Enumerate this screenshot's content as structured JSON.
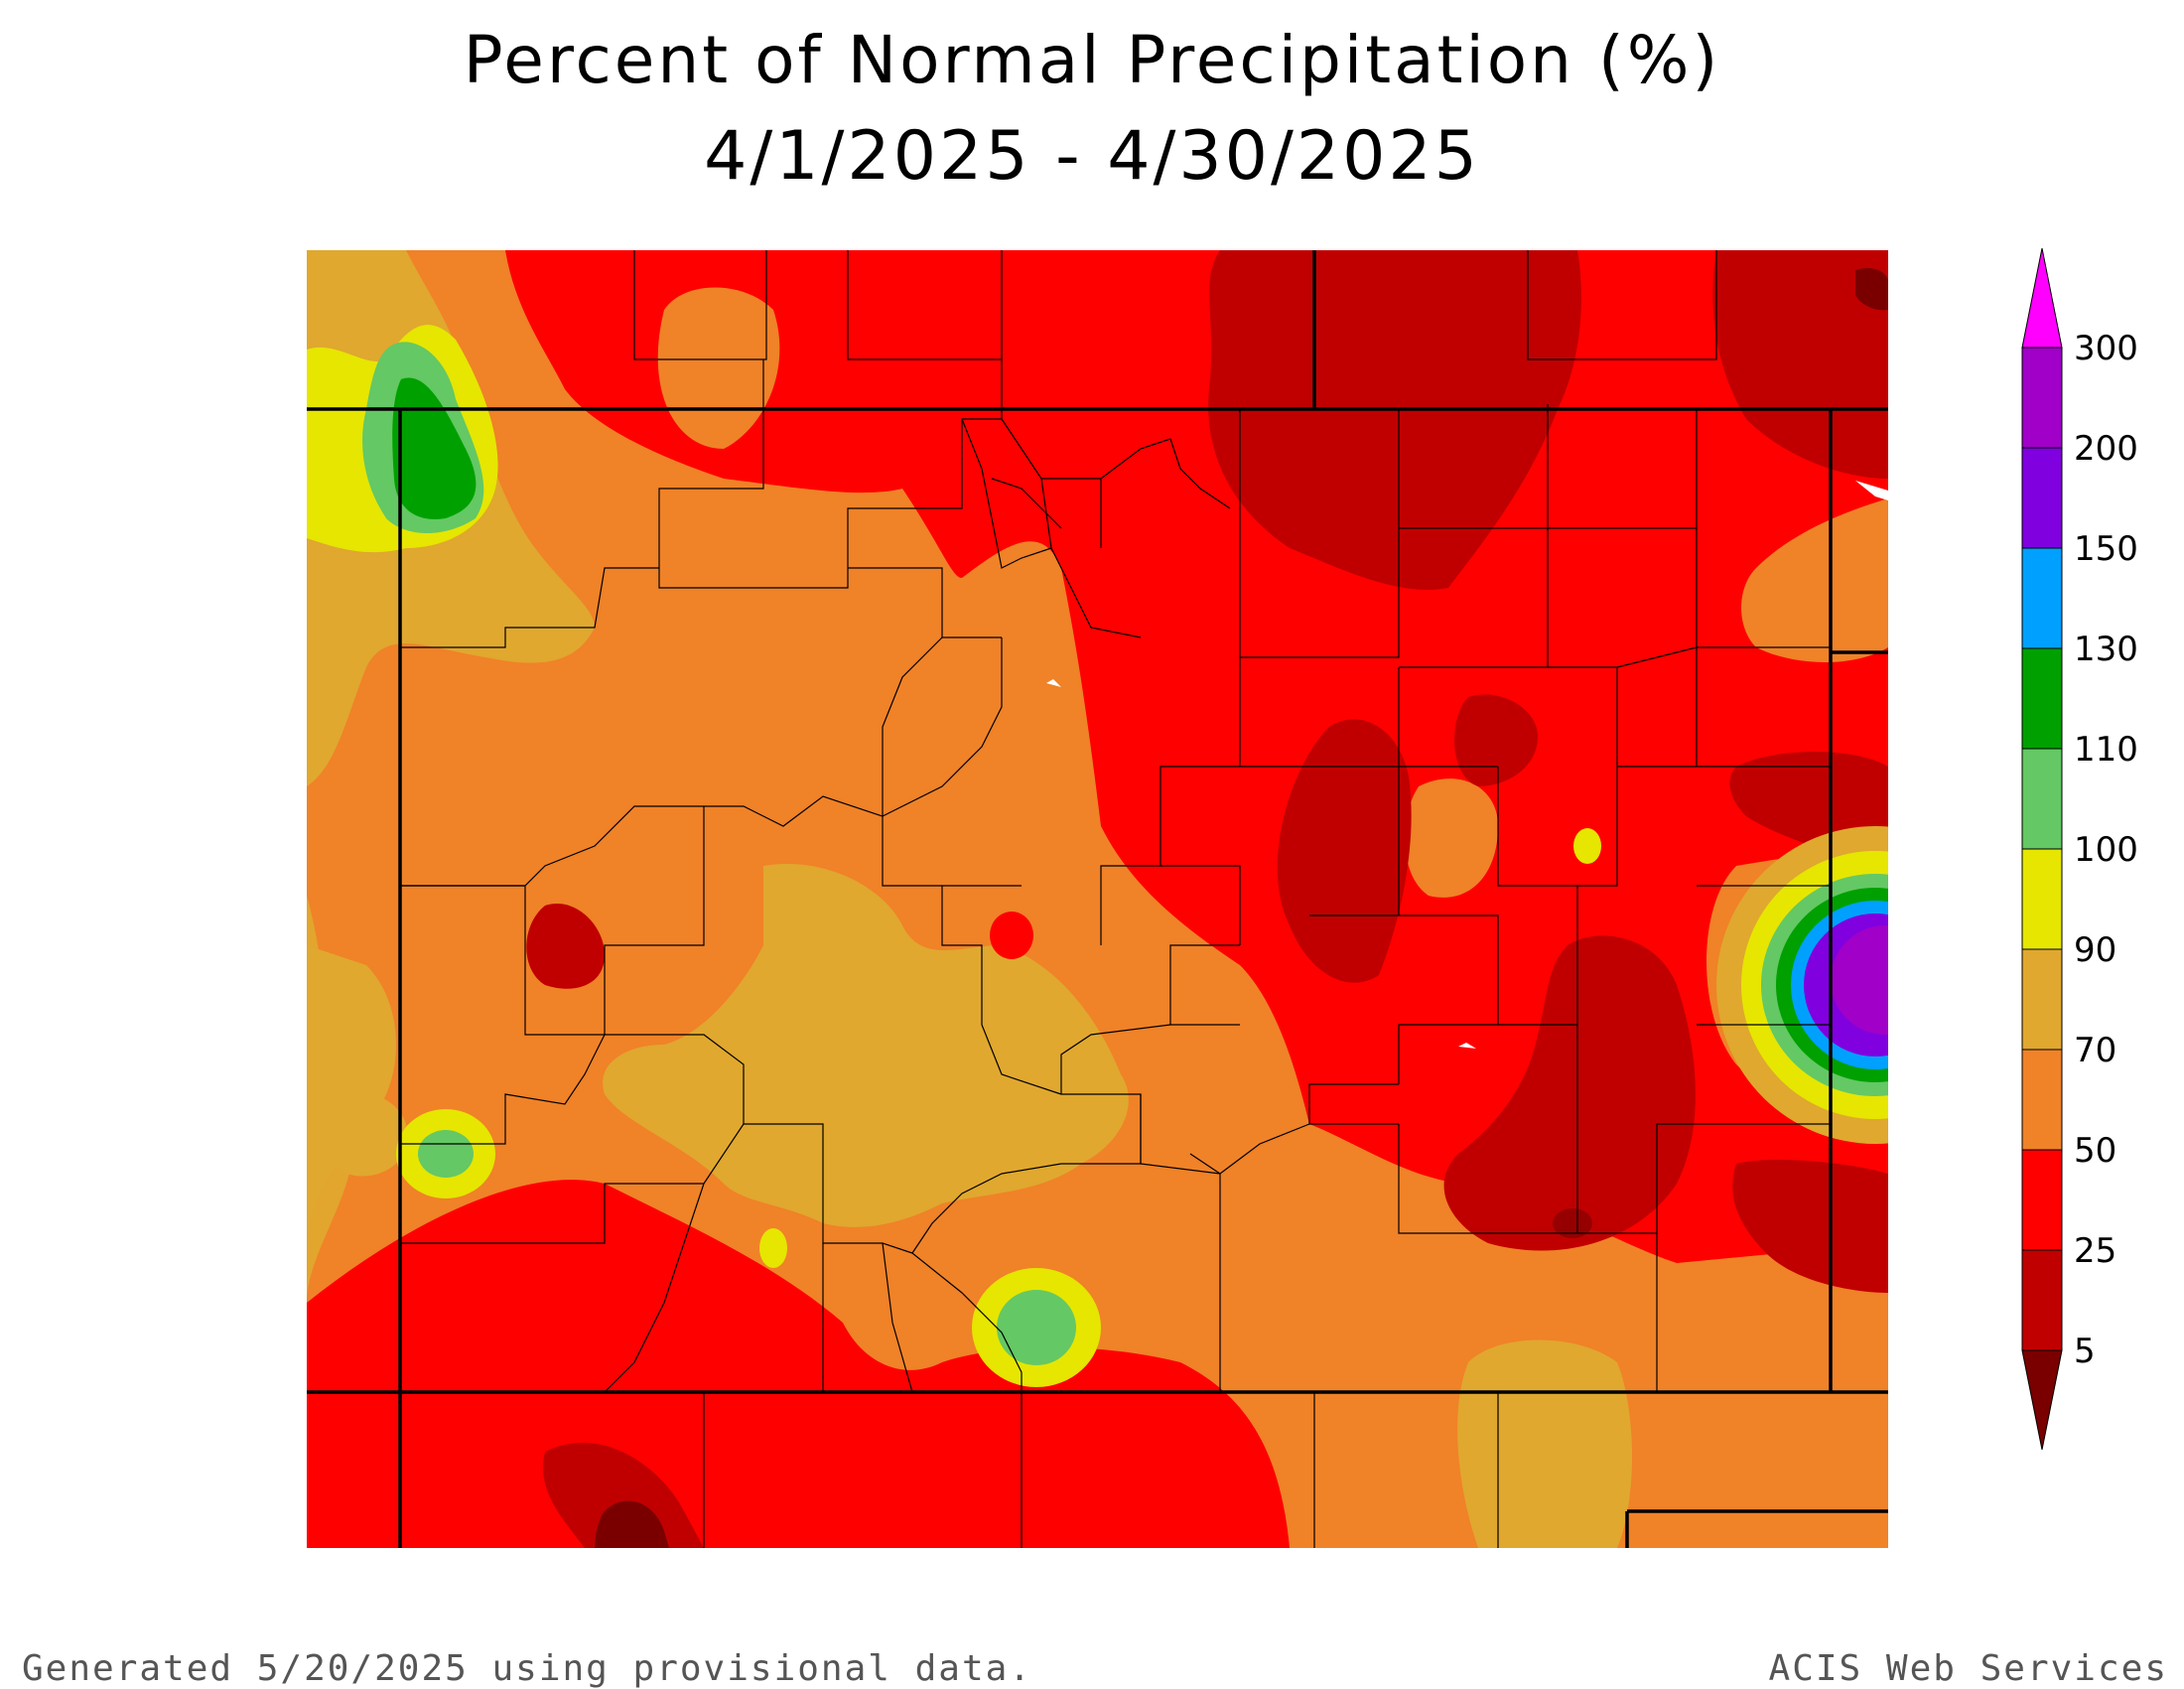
{
  "title": {
    "line1": "Percent of Normal Precipitation (%)",
    "line2": "4/1/2025 - 4/30/2025"
  },
  "legend": {
    "bins": [
      {
        "label": "5",
        "color": "#7a0000"
      },
      {
        "label": "25",
        "color": "#c00000"
      },
      {
        "label": "50",
        "color": "#ff0000"
      },
      {
        "label": "70",
        "color": "#f08228"
      },
      {
        "label": "90",
        "color": "#e0a82e"
      },
      {
        "label": "100",
        "color": "#e6e600"
      },
      {
        "label": "110",
        "color": "#64c864"
      },
      {
        "label": "130",
        "color": "#00a000"
      },
      {
        "label": "150",
        "color": "#00a0ff"
      },
      {
        "label": "200",
        "color": "#8000e0"
      },
      {
        "label": "300",
        "color": "#a000c8"
      }
    ],
    "over_color": "#ff00ff",
    "under_color": "#7a0000"
  },
  "footer": {
    "generated": "Generated 5/20/2025 using provisional data.",
    "source": "ACIS Web Services"
  }
}
